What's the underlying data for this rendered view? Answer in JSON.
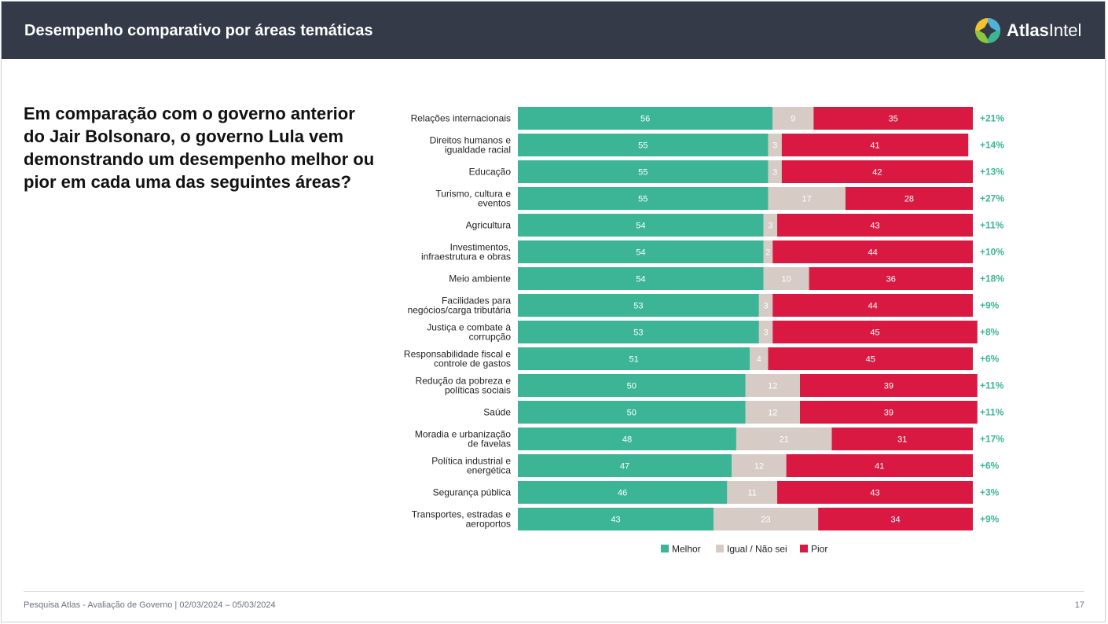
{
  "header": {
    "title": "Desempenho comparativo por áreas temáticas",
    "logo_text_bold": "Atlas",
    "logo_text_regular": "Intel"
  },
  "question": "Em comparação com o governo anterior do Jair Bolsonaro, o governo Lula vem demonstrando um desempenho melhor ou pior em cada uma das seguintes áreas?",
  "footer": {
    "source": "Pesquisa Atlas - Avaliação de Governo | 02/03/2024 – 05/03/2024",
    "page": "17"
  },
  "colors": {
    "melhor": "#3bb596",
    "igual": "#d6cbc5",
    "pior": "#d91942",
    "net": "#3bb596",
    "header": "#343a47"
  },
  "chart_data": {
    "type": "bar",
    "orientation": "horizontal",
    "stacked": true,
    "categories": [
      [
        "Relações internacionais"
      ],
      [
        "Direitos humanos e",
        "igualdade racial"
      ],
      [
        "Educação"
      ],
      [
        "Turismo, cultura e",
        "eventos"
      ],
      [
        "Agricultura"
      ],
      [
        "Investimentos,",
        "infraestrutura e obras"
      ],
      [
        "Meio ambiente"
      ],
      [
        "Facilidades para",
        "negócios/carga tributária"
      ],
      [
        "Justiça e combate à",
        "corrupção"
      ],
      [
        "Responsabilidade fiscal e",
        "controle de gastos"
      ],
      [
        "Redução da pobreza e",
        "políticas sociais"
      ],
      [
        "Saúde"
      ],
      [
        "Moradia e urbanização",
        "de favelas"
      ],
      [
        "Política industrial e",
        "energética"
      ],
      [
        "Segurança pública"
      ],
      [
        "Transportes, estradas e",
        "aeroportos"
      ]
    ],
    "series": [
      {
        "name": "Melhor",
        "values": [
          56,
          55,
          55,
          55,
          54,
          54,
          54,
          53,
          53,
          51,
          50,
          50,
          48,
          47,
          46,
          43
        ]
      },
      {
        "name": "Igual / Não sei",
        "values": [
          9,
          3,
          3,
          17,
          3,
          2,
          10,
          3,
          3,
          4,
          12,
          12,
          21,
          12,
          11,
          23
        ]
      },
      {
        "name": "Pior",
        "values": [
          35,
          41,
          42,
          28,
          43,
          44,
          36,
          44,
          45,
          45,
          39,
          39,
          31,
          41,
          43,
          34
        ]
      }
    ],
    "net": [
      "+21%",
      "+14%",
      "+13%",
      "+27%",
      "+11%",
      "+10%",
      "+18%",
      "+9%",
      "+8%",
      "+6%",
      "+11%",
      "+11%",
      "+17%",
      "+6%",
      "+3%",
      "+9%"
    ],
    "xlim": [
      0,
      100
    ],
    "legend": "bottom-center"
  }
}
